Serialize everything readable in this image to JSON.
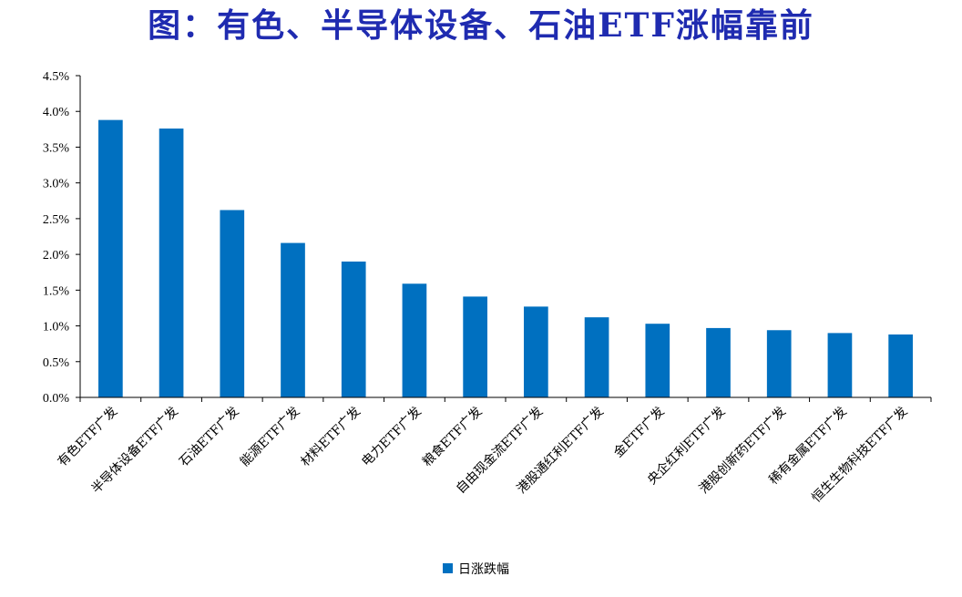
{
  "title": "图：有色、半导体设备、石油ETF涨幅靠前",
  "chart_data": {
    "type": "bar",
    "categories": [
      "有色ETF广发",
      "半导体设备ETF广发",
      "石油ETF广发",
      "能源ETF广发",
      "材料ETF广发",
      "电力ETF广发",
      "粮食ETF广发",
      "自由现金流ETF广发",
      "港股通红利ETF广发",
      "金ETF广发",
      "央企红利ETF广发",
      "港股创新药ETF广发",
      "稀有金属ETF广发",
      "恒生生物科技ETF广发"
    ],
    "series": [
      {
        "name": "日涨跌幅",
        "values": [
          3.88,
          3.76,
          2.62,
          2.16,
          1.9,
          1.59,
          1.41,
          1.27,
          1.12,
          1.03,
          0.97,
          0.94,
          0.9,
          0.88
        ]
      }
    ],
    "yticks": [
      "0.0%",
      "0.5%",
      "1.0%",
      "1.5%",
      "2.0%",
      "2.5%",
      "3.0%",
      "3.5%",
      "4.0%",
      "4.5%"
    ],
    "ylim": [
      0,
      4.5
    ],
    "unit": "%",
    "bar_color": "#0070c0",
    "grid": false,
    "legend_position": "bottom"
  }
}
